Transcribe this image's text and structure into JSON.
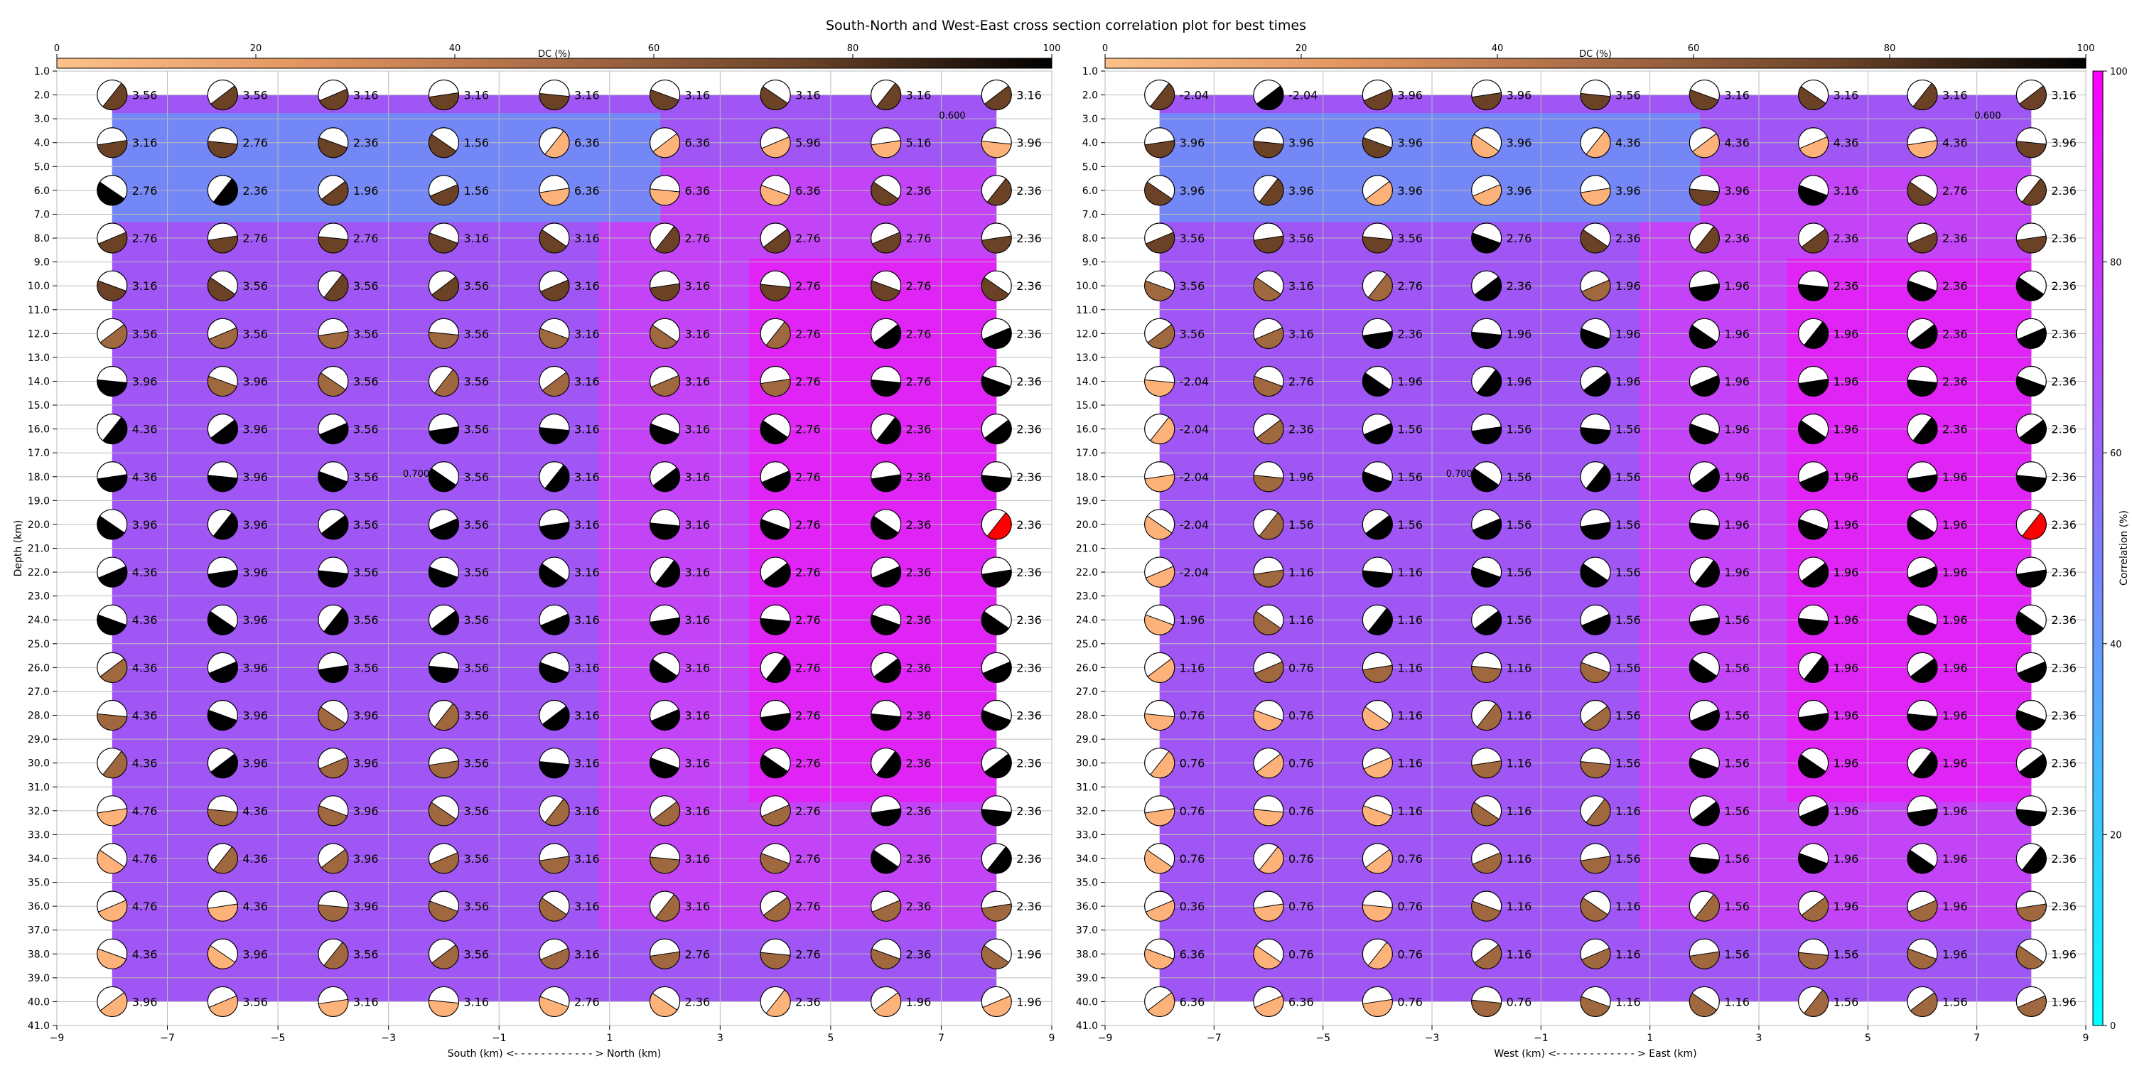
{
  "title": "South-North and West-East cross section correlation plot for best times",
  "colorbar": {
    "label": "Correlation (%)",
    "ticks": [
      0,
      20,
      40,
      60,
      80,
      100
    ],
    "colormap": "cool",
    "cmap_colors": [
      "#00ffff",
      "#ff00ff"
    ]
  },
  "dc_colorbar": {
    "label": "DC (%)",
    "ticks": [
      0,
      20,
      40,
      60,
      80,
      100
    ],
    "colors": [
      "#fdc18a",
      "#e3955f",
      "#a96a45",
      "#6b4327",
      "#000000"
    ]
  },
  "beachball_fill_colors": {
    "best": "#ff0000",
    "dc_low": "#fdb27a",
    "dc_mid": "#a0683f",
    "dc_high": "#6b4226",
    "dc_full": "#000000"
  },
  "chart_data": [
    {
      "type": "heatmap",
      "panel": "South-North",
      "xlabel": "South (km) <- - - - - - - - - - - - > North (km)",
      "ylabel": "Depth (km)",
      "xticks": [
        -9,
        -7,
        -5,
        -3,
        -1,
        1,
        3,
        5,
        7,
        9
      ],
      "yticks": [
        1.0,
        2.0,
        3.0,
        4.0,
        5.0,
        6.0,
        7.0,
        8.0,
        9.0,
        10.0,
        11.0,
        12.0,
        13.0,
        14.0,
        15.0,
        16.0,
        17.0,
        18.0,
        19.0,
        20.0,
        21.0,
        22.0,
        23.0,
        24.0,
        25.0,
        26.0,
        27.0,
        28.0,
        29.0,
        30.0,
        31.0,
        32.0,
        33.0,
        34.0,
        35.0,
        36.0,
        37.0,
        38.0,
        39.0,
        40.0,
        41.0
      ],
      "xlim": [
        -9,
        9
      ],
      "ylim": [
        41,
        1
      ],
      "x": [
        -8,
        -6,
        -4,
        -2,
        0,
        2,
        4,
        6,
        8
      ],
      "depths": [
        2,
        4,
        6,
        8,
        10,
        12,
        14,
        16,
        18,
        20,
        22,
        24,
        26,
        28,
        30,
        32,
        34,
        36,
        38,
        40
      ],
      "times": [
        [
          "3.56",
          "3.56",
          "3.16",
          "3.16",
          "3.16",
          "3.16",
          "3.16",
          "3.16",
          "3.16"
        ],
        [
          "3.16",
          "2.76",
          "2.36",
          "1.56",
          "6.36",
          "6.36",
          "5.96",
          "5.16",
          "3.96"
        ],
        [
          "2.76",
          "2.36",
          "1.96",
          "1.56",
          "6.36",
          "6.36",
          "6.36",
          "2.36",
          "2.36"
        ],
        [
          "2.76",
          "2.76",
          "2.76",
          "3.16",
          "3.16",
          "2.76",
          "2.76",
          "2.76",
          "2.36"
        ],
        [
          "3.16",
          "3.56",
          "3.56",
          "3.56",
          "3.16",
          "3.16",
          "2.76",
          "2.76",
          "2.36"
        ],
        [
          "3.56",
          "3.56",
          "3.56",
          "3.56",
          "3.16",
          "3.16",
          "2.76",
          "2.76",
          "2.36"
        ],
        [
          "3.96",
          "3.96",
          "3.56",
          "3.56",
          "3.16",
          "3.16",
          "2.76",
          "2.76",
          "2.36"
        ],
        [
          "4.36",
          "3.96",
          "3.56",
          "3.56",
          "3.16",
          "3.16",
          "2.76",
          "2.36",
          "2.36"
        ],
        [
          "4.36",
          "3.96",
          "3.56",
          "3.56",
          "3.16",
          "3.16",
          "2.76",
          "2.36",
          "2.36"
        ],
        [
          "3.96",
          "3.96",
          "3.56",
          "3.56",
          "3.16",
          "3.16",
          "2.76",
          "2.36",
          "2.36"
        ],
        [
          "4.36",
          "3.96",
          "3.56",
          "3.56",
          "3.16",
          "3.16",
          "2.76",
          "2.36",
          "2.36"
        ],
        [
          "4.36",
          "3.96",
          "3.56",
          "3.56",
          "3.16",
          "3.16",
          "2.76",
          "2.36",
          "2.36"
        ],
        [
          "4.36",
          "3.96",
          "3.56",
          "3.56",
          "3.16",
          "3.16",
          "2.76",
          "2.36",
          "2.36"
        ],
        [
          "4.36",
          "3.96",
          "3.96",
          "3.56",
          "3.16",
          "3.16",
          "2.76",
          "2.36",
          "2.36"
        ],
        [
          "4.36",
          "3.96",
          "3.96",
          "3.56",
          "3.16",
          "3.16",
          "2.76",
          "2.36",
          "2.36"
        ],
        [
          "4.76",
          "4.36",
          "3.96",
          "3.56",
          "3.16",
          "3.16",
          "2.76",
          "2.36",
          "2.36"
        ],
        [
          "4.76",
          "4.36",
          "3.96",
          "3.56",
          "3.16",
          "3.16",
          "2.76",
          "2.36",
          "2.36"
        ],
        [
          "4.76",
          "4.36",
          "3.96",
          "3.56",
          "3.16",
          "3.16",
          "2.76",
          "2.36",
          "2.36"
        ],
        [
          "4.36",
          "3.96",
          "3.56",
          "3.56",
          "3.16",
          "2.76",
          "2.76",
          "2.36",
          "1.96"
        ],
        [
          "3.96",
          "3.56",
          "3.16",
          "3.16",
          "2.76",
          "2.36",
          "2.36",
          "1.96",
          "1.96"
        ]
      ],
      "contour_labels": [
        "0.600",
        "0.700"
      ],
      "best": {
        "x": 8,
        "depth": 20,
        "time": "2.36"
      }
    },
    {
      "type": "heatmap",
      "panel": "West-East",
      "xlabel": "West (km) <- - - - - - - - - - - - > East (km)",
      "ylabel": "",
      "xticks": [
        -9,
        -7,
        -5,
        -3,
        -1,
        1,
        3,
        5,
        7,
        9
      ],
      "yticks": [
        1.0,
        2.0,
        3.0,
        4.0,
        5.0,
        6.0,
        7.0,
        8.0,
        9.0,
        10.0,
        11.0,
        12.0,
        13.0,
        14.0,
        15.0,
        16.0,
        17.0,
        18.0,
        19.0,
        20.0,
        21.0,
        22.0,
        23.0,
        24.0,
        25.0,
        26.0,
        27.0,
        28.0,
        29.0,
        30.0,
        31.0,
        32.0,
        33.0,
        34.0,
        35.0,
        36.0,
        37.0,
        38.0,
        39.0,
        40.0,
        41.0
      ],
      "xlim": [
        -9,
        9
      ],
      "ylim": [
        41,
        1
      ],
      "x": [
        -8,
        -6,
        -4,
        -2,
        0,
        2,
        4,
        6,
        8
      ],
      "depths": [
        2,
        4,
        6,
        8,
        10,
        12,
        14,
        16,
        18,
        20,
        22,
        24,
        26,
        28,
        30,
        32,
        34,
        36,
        38,
        40
      ],
      "times": [
        [
          "-2.04",
          "-2.04",
          "3.96",
          "3.96",
          "3.56",
          "3.16",
          "3.16",
          "3.16",
          "3.16"
        ],
        [
          "3.96",
          "3.96",
          "3.96",
          "3.96",
          "4.36",
          "4.36",
          "4.36",
          "4.36",
          "3.96"
        ],
        [
          "3.96",
          "3.96",
          "3.96",
          "3.96",
          "3.96",
          "3.96",
          "3.16",
          "2.76",
          "2.36"
        ],
        [
          "3.56",
          "3.56",
          "3.56",
          "2.76",
          "2.36",
          "2.36",
          "2.36",
          "2.36",
          "2.36"
        ],
        [
          "3.56",
          "3.16",
          "2.76",
          "2.36",
          "1.96",
          "1.96",
          "2.36",
          "2.36",
          "2.36"
        ],
        [
          "3.56",
          "3.16",
          "2.36",
          "1.96",
          "1.96",
          "1.96",
          "1.96",
          "2.36",
          "2.36"
        ],
        [
          "-2.04",
          "2.76",
          "1.96",
          "1.96",
          "1.96",
          "1.96",
          "1.96",
          "2.36",
          "2.36"
        ],
        [
          "-2.04",
          "2.36",
          "1.56",
          "1.56",
          "1.56",
          "1.96",
          "1.96",
          "2.36",
          "2.36"
        ],
        [
          "-2.04",
          "1.96",
          "1.56",
          "1.56",
          "1.56",
          "1.96",
          "1.96",
          "1.96",
          "2.36"
        ],
        [
          "-2.04",
          "1.56",
          "1.56",
          "1.56",
          "1.56",
          "1.96",
          "1.96",
          "1.96",
          "2.36"
        ],
        [
          "-2.04",
          "1.16",
          "1.16",
          "1.56",
          "1.56",
          "1.96",
          "1.96",
          "1.96",
          "2.36"
        ],
        [
          "1.96",
          "1.16",
          "1.16",
          "1.56",
          "1.56",
          "1.56",
          "1.96",
          "1.96",
          "2.36"
        ],
        [
          "1.16",
          "0.76",
          "1.16",
          "1.16",
          "1.56",
          "1.56",
          "1.96",
          "1.96",
          "2.36"
        ],
        [
          "0.76",
          "0.76",
          "1.16",
          "1.16",
          "1.56",
          "1.56",
          "1.96",
          "1.96",
          "2.36"
        ],
        [
          "0.76",
          "0.76",
          "1.16",
          "1.16",
          "1.56",
          "1.56",
          "1.96",
          "1.96",
          "2.36"
        ],
        [
          "0.76",
          "0.76",
          "1.16",
          "1.16",
          "1.16",
          "1.56",
          "1.96",
          "1.96",
          "2.36"
        ],
        [
          "0.76",
          "0.76",
          "0.76",
          "1.16",
          "1.56",
          "1.56",
          "1.96",
          "1.96",
          "2.36"
        ],
        [
          "0.36",
          "0.76",
          "0.76",
          "1.16",
          "1.16",
          "1.56",
          "1.96",
          "1.96",
          "2.36"
        ],
        [
          "6.36",
          "0.76",
          "0.76",
          "1.16",
          "1.16",
          "1.56",
          "1.56",
          "1.96",
          "1.96"
        ],
        [
          "6.36",
          "6.36",
          "0.76",
          "0.76",
          "1.16",
          "1.16",
          "1.56",
          "1.56",
          "1.96"
        ]
      ],
      "contour_labels": [
        "0.600",
        "0.700"
      ],
      "best": {
        "x": 8,
        "depth": 20,
        "time": "2.36"
      }
    }
  ]
}
